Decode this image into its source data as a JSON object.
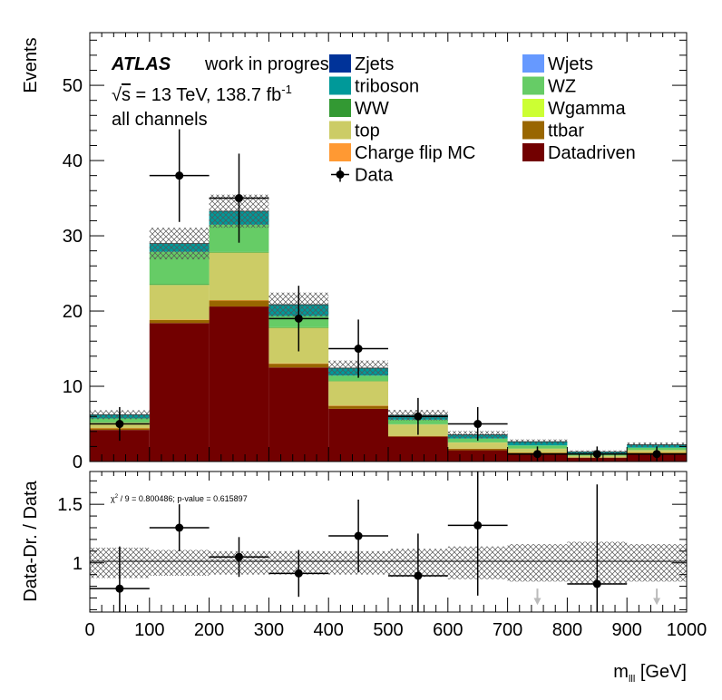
{
  "figure": {
    "experiment": "ATLAS",
    "status": "work in progress",
    "energy_prefix": "√",
    "energy_var": "s",
    "energy_text": " = 13 TeV, 138.7 fb",
    "lumi_sup": "-1",
    "channel": "all channels"
  },
  "chart_data": [
    {
      "type": "bar",
      "stacked": true,
      "bin_edges": [
        0,
        100,
        200,
        300,
        400,
        500,
        600,
        700,
        800,
        900,
        1000
      ],
      "ylabel": "Events",
      "ylim": [
        0,
        57
      ],
      "yticks": [
        0,
        10,
        20,
        30,
        40,
        50
      ],
      "series": [
        {
          "name": "Datadriven",
          "color": "#720000",
          "values": [
            4.2,
            18.4,
            20.6,
            12.5,
            7.0,
            3.3,
            1.5,
            1.1,
            0.5,
            1.1
          ]
        },
        {
          "name": "ttbar",
          "color": "#996600",
          "values": [
            0.2,
            0.4,
            0.8,
            0.5,
            0.4,
            0.1,
            0.2,
            0.1,
            0.05,
            0.1
          ]
        },
        {
          "name": "Charge flip MC",
          "color": "#ff9933",
          "values": [
            0.05,
            0.05,
            0.05,
            0.05,
            0.05,
            0.02,
            0.02,
            0.01,
            0.01,
            0.01
          ]
        },
        {
          "name": "top",
          "color": "#cccc66",
          "values": [
            0.7,
            4.6,
            6.3,
            4.7,
            3.2,
            1.5,
            0.8,
            0.5,
            0.2,
            0.3
          ]
        },
        {
          "name": "Wgamma",
          "color": "#ccff33",
          "values": [
            0.02,
            0.02,
            0.02,
            0.02,
            0.02,
            0.01,
            0.01,
            0.01,
            0.01,
            0.01
          ]
        },
        {
          "name": "WW",
          "color": "#339933",
          "values": [
            0.05,
            0.1,
            0.1,
            0.08,
            0.05,
            0.03,
            0.03,
            0.02,
            0.02,
            0.02
          ]
        },
        {
          "name": "WZ",
          "color": "#66cc66",
          "values": [
            0.5,
            4.3,
            3.6,
            1.5,
            0.7,
            0.6,
            0.5,
            0.4,
            0.2,
            0.3
          ]
        },
        {
          "name": "triboson",
          "color": "#009999",
          "values": [
            0.5,
            1.1,
            1.8,
            1.5,
            1.0,
            0.6,
            0.5,
            0.5,
            0.3,
            0.4
          ]
        },
        {
          "name": "Wjets",
          "color": "#6699ff",
          "values": [
            0,
            0,
            0,
            0,
            0,
            0,
            0,
            0,
            0,
            0
          ]
        },
        {
          "name": "Zjets",
          "color": "#003399",
          "values": [
            0,
            0,
            0,
            0,
            0,
            0,
            0,
            0,
            0,
            0
          ]
        }
      ],
      "uncertainty": [
        0.6,
        2.1,
        2.2,
        1.6,
        1.0,
        0.7,
        0.5,
        0.3,
        0.2,
        0.3
      ],
      "data": {
        "name": "Data",
        "x": [
          50,
          150,
          250,
          350,
          450,
          550,
          650,
          750,
          850,
          950
        ],
        "y": [
          5,
          38,
          35,
          19,
          15,
          6,
          5,
          1,
          1,
          1
        ],
        "yerr": [
          2.24,
          6.16,
          5.92,
          4.36,
          3.87,
          2.45,
          2.24,
          1.0,
          1.0,
          1.0
        ]
      },
      "legend_left": [
        "Zjets",
        "triboson",
        "WW",
        "top",
        "Charge flip MC",
        "Data"
      ],
      "legend_right": [
        "Wjets",
        "WZ",
        "Wgamma",
        "ttbar",
        "Datadriven"
      ]
    },
    {
      "type": "scatter",
      "ylabel": "Data-Dr. / Data",
      "xlabel_main": "m",
      "xlabel_sub": "lll",
      "xlabel_unit": " [GeV]",
      "xlim": [
        0,
        1000
      ],
      "ylim": [
        0.58,
        1.78
      ],
      "yticks": [
        1,
        1.5
      ],
      "ytick_labels": [
        "1",
        "1.5"
      ],
      "xticks": [
        0,
        100,
        200,
        300,
        400,
        500,
        600,
        700,
        800,
        900,
        1000
      ],
      "chi2_label": "χ",
      "chi2_text": " / 9 = 0.800486; p-value = 0.615897",
      "band_half_width": [
        0.13,
        0.11,
        0.1,
        0.1,
        0.1,
        0.12,
        0.14,
        0.16,
        0.18,
        0.16
      ],
      "points": {
        "x": [
          50,
          150,
          250,
          350,
          450,
          550,
          650,
          850
        ],
        "y": [
          0.78,
          1.3,
          1.05,
          0.91,
          1.23,
          0.89,
          1.32,
          0.82
        ],
        "yerr": [
          0.36,
          0.2,
          0.17,
          0.2,
          0.31,
          0.36,
          0.6,
          0.85
        ]
      },
      "offscale_arrows_x": [
        750,
        950
      ]
    }
  ]
}
